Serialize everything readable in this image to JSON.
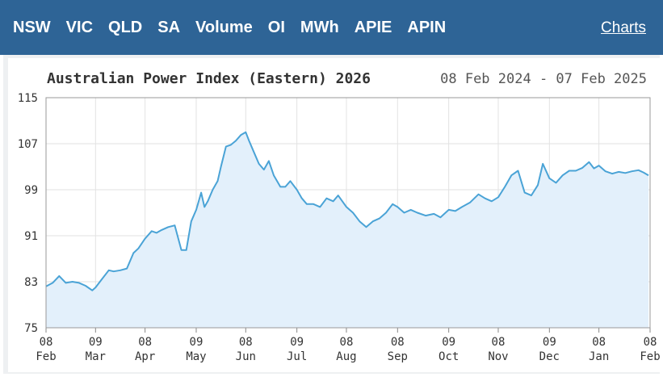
{
  "nav": {
    "items": [
      "NSW",
      "VIC",
      "QLD",
      "SA",
      "Volume",
      "OI",
      "MWh",
      "APIE",
      "APIN"
    ],
    "charts_link": "Charts"
  },
  "colors": {
    "header_bg": "#2e6496",
    "line": "#4aa3d6",
    "fill": "#e3f0fb"
  },
  "chart_data": {
    "type": "area",
    "title": "Australian Power Index (Eastern) 2026",
    "date_range": "08 Feb 2024 - 07 Feb 2025",
    "ylim": [
      75,
      115
    ],
    "yticks": [
      "115",
      "107",
      "99",
      "91",
      "83",
      "75"
    ],
    "xticks": [
      {
        "day": "08",
        "month": "Feb"
      },
      {
        "day": "09",
        "month": "Mar"
      },
      {
        "day": "08",
        "month": "Apr"
      },
      {
        "day": "09",
        "month": "May"
      },
      {
        "day": "08",
        "month": "Jun"
      },
      {
        "day": "09",
        "month": "Jul"
      },
      {
        "day": "08",
        "month": "Aug"
      },
      {
        "day": "08",
        "month": "Sep"
      },
      {
        "day": "09",
        "month": "Oct"
      },
      {
        "day": "08",
        "month": "Nov"
      },
      {
        "day": "09",
        "month": "Dec"
      },
      {
        "day": "08",
        "month": "Jan"
      },
      {
        "day": "08",
        "month": "Feb"
      }
    ],
    "grid": true,
    "series": [
      {
        "x": [
          "2024-02-08",
          "2024-02-12",
          "2024-02-16",
          "2024-02-20",
          "2024-02-24",
          "2024-02-28",
          "2024-03-03",
          "2024-03-07",
          "2024-03-09",
          "2024-03-13",
          "2024-03-17",
          "2024-03-20",
          "2024-03-24",
          "2024-03-28",
          "2024-04-01",
          "2024-04-04",
          "2024-04-08",
          "2024-04-12",
          "2024-04-15",
          "2024-04-18",
          "2024-04-22",
          "2024-04-26",
          "2024-04-30",
          "2024-05-03",
          "2024-05-06",
          "2024-05-09",
          "2024-05-12",
          "2024-05-14",
          "2024-05-16",
          "2024-05-19",
          "2024-05-22",
          "2024-05-24",
          "2024-05-27",
          "2024-05-30",
          "2024-06-02",
          "2024-06-05",
          "2024-06-08",
          "2024-06-10",
          "2024-06-13",
          "2024-06-16",
          "2024-06-19",
          "2024-06-22",
          "2024-06-25",
          "2024-06-29",
          "2024-07-02",
          "2024-07-05",
          "2024-07-09",
          "2024-07-12",
          "2024-07-15",
          "2024-07-19",
          "2024-07-23",
          "2024-07-27",
          "2024-07-31",
          "2024-08-03",
          "2024-08-08",
          "2024-08-12",
          "2024-08-16",
          "2024-08-20",
          "2024-08-24",
          "2024-08-28",
          "2024-09-01",
          "2024-09-05",
          "2024-09-08",
          "2024-09-12",
          "2024-09-16",
          "2024-09-20",
          "2024-09-25",
          "2024-09-30",
          "2024-10-04",
          "2024-10-09",
          "2024-10-13",
          "2024-10-17",
          "2024-10-22",
          "2024-10-27",
          "2024-10-31",
          "2024-11-04",
          "2024-11-08",
          "2024-11-12",
          "2024-11-16",
          "2024-11-20",
          "2024-11-24",
          "2024-11-28",
          "2024-12-02",
          "2024-12-05",
          "2024-12-09",
          "2024-12-13",
          "2024-12-17",
          "2024-12-21",
          "2024-12-25",
          "2024-12-29",
          "2025-01-02",
          "2025-01-05",
          "2025-01-08",
          "2025-01-12",
          "2025-01-16",
          "2025-01-20",
          "2025-01-24",
          "2025-01-28",
          "2025-02-01",
          "2025-02-04",
          "2025-02-07"
        ],
        "values": [
          82.2,
          82.8,
          84.0,
          82.8,
          83.0,
          82.8,
          82.3,
          81.5,
          82.0,
          83.5,
          85.0,
          84.8,
          85.0,
          85.3,
          88.0,
          88.8,
          90.5,
          91.8,
          91.5,
          92.0,
          92.5,
          92.8,
          88.5,
          88.5,
          93.5,
          95.5,
          98.5,
          96.0,
          97.0,
          99.0,
          100.5,
          103.0,
          106.5,
          106.8,
          107.5,
          108.5,
          109.0,
          107.5,
          105.5,
          103.5,
          102.5,
          104.0,
          101.5,
          99.5,
          99.5,
          100.5,
          99.0,
          97.5,
          96.5,
          96.5,
          96.0,
          97.5,
          97.0,
          98.0,
          96.0,
          95.0,
          93.5,
          92.5,
          93.5,
          94.0,
          95.0,
          96.5,
          96.0,
          95.0,
          95.5,
          95.0,
          94.5,
          94.8,
          94.2,
          95.5,
          95.3,
          96.0,
          96.8,
          98.2,
          97.5,
          97.0,
          97.7,
          99.5,
          101.5,
          102.3,
          98.5,
          98.0,
          99.8,
          103.5,
          101.0,
          100.2,
          101.5,
          102.3,
          102.3,
          102.8,
          103.8,
          102.7,
          103.2,
          102.2,
          101.8,
          102.1,
          101.9,
          102.2,
          102.4,
          102.0,
          101.5
        ]
      }
    ]
  }
}
